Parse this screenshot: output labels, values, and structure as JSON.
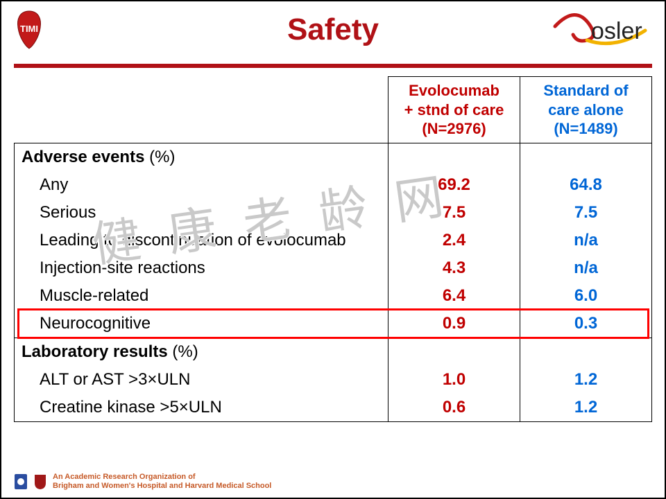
{
  "colors": {
    "title": "#b01116",
    "rule": "#b01116",
    "col1": "#c00000",
    "col2": "#0066d6",
    "footer": "#c65a28"
  },
  "title": "Safety",
  "columns": {
    "col1_line1": "Evolocumab",
    "col1_line2": "+ stnd of care",
    "col1_line3": "(N=2976)",
    "col2_line1": "Standard of",
    "col2_line2": "care alone",
    "col2_line3": "(N=1489)"
  },
  "sections": [
    {
      "header": "Adverse events",
      "pct": "(%)",
      "rows": [
        {
          "label": "Any",
          "v1": "69.2",
          "v2": "64.8"
        },
        {
          "label": "Serious",
          "v1": "7.5",
          "v2": "7.5"
        },
        {
          "label": "Leading to discontinuation of evolocumab",
          "v1": "2.4",
          "v2": "n/a"
        },
        {
          "label": "Injection-site reactions",
          "v1": "4.3",
          "v2": "n/a"
        },
        {
          "label": "Muscle-related",
          "v1": "6.4",
          "v2": "6.0"
        },
        {
          "label": "Neurocognitive",
          "v1": "0.9",
          "v2": "0.3",
          "highlight": true
        }
      ]
    },
    {
      "header": "Laboratory results",
      "pct": "(%)",
      "rows": [
        {
          "label": "ALT or AST >3×ULN",
          "v1": "1.0",
          "v2": "1.2"
        },
        {
          "label": "Creatine kinase >5×ULN",
          "v1": "0.6",
          "v2": "1.2"
        }
      ]
    }
  ],
  "watermark": "健康老龄网",
  "footer_line1": "An Academic Research Organization of",
  "footer_line2": "Brigham and Women's Hospital and Harvard Medical School"
}
